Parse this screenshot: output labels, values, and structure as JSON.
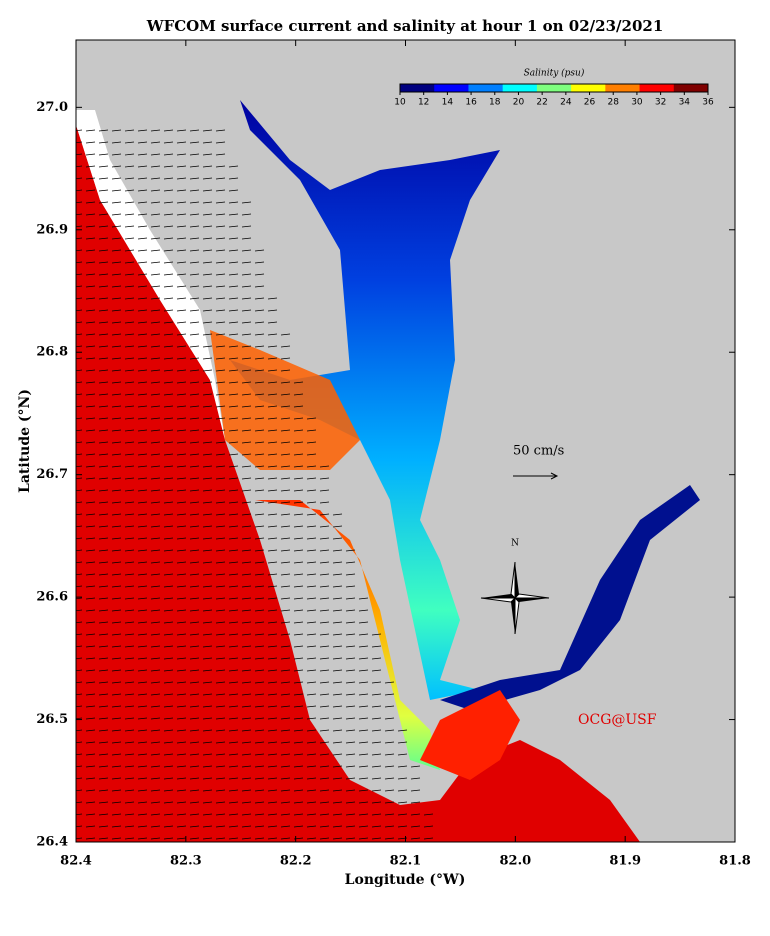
{
  "chart_data": {
    "type": "map",
    "title": "WFCOM surface current and salinity at hour 1 on 02/23/2021",
    "x_label": "Longitude (°W)",
    "y_label": "Latitude (°N)",
    "xlim": [
      82.4,
      81.8
    ],
    "xticks": [
      82.4,
      82.3,
      82.2,
      82.1,
      {
        "value": 82,
        "label": "82.0"
      },
      81.9,
      81.8
    ],
    "ylim": [
      26.4,
      27.055
    ],
    "yticks": [
      26.4,
      26.5,
      26.6,
      26.7,
      26.8,
      26.9,
      {
        "value": 27,
        "label": "27.0"
      }
    ],
    "colorbar": {
      "title": "Salinity (psu)",
      "range": [
        10,
        36
      ],
      "ticks": [
        10,
        12,
        14,
        16,
        18,
        20,
        22,
        24,
        26,
        28,
        30,
        32,
        34,
        36
      ],
      "colors": [
        "#00007f",
        "#0000ff",
        "#007fff",
        "#00ffff",
        "#7fff7f",
        "#ffff00",
        "#ff7f00",
        "#ff0000",
        "#7f0000"
      ]
    },
    "scale_label": "50 cm/s",
    "compass_label": "N",
    "credit": "OCG@USF"
  }
}
